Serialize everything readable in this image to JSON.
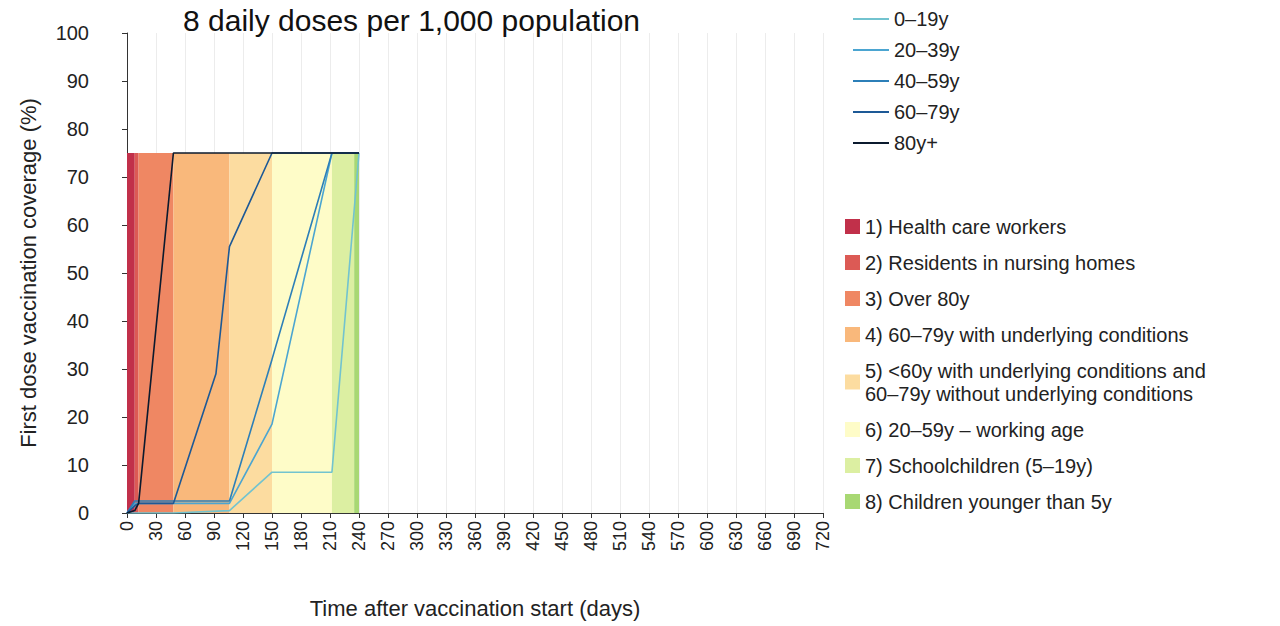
{
  "chart_data": {
    "type": "line",
    "title": "8 daily doses per 1,000 population",
    "x_label": "Time after vaccination start (days)",
    "y_label": "First dose vaccination coverage (%)",
    "xlim": [
      0,
      720
    ],
    "xticks": [
      0,
      30,
      60,
      90,
      120,
      150,
      180,
      210,
      240,
      270,
      300,
      330,
      360,
      390,
      420,
      450,
      480,
      510,
      540,
      570,
      600,
      630,
      660,
      690,
      720
    ],
    "ylim": [
      0,
      100
    ],
    "yticks": [
      0,
      10,
      20,
      30,
      40,
      50,
      60,
      70,
      80,
      90,
      100
    ],
    "grid": "x",
    "legend": "top-right",
    "series": [
      {
        "name": "0–19y",
        "color": "#72c3cf",
        "x": [
          0,
          12,
          48,
          106,
          150,
          212,
          240
        ],
        "values": [
          0,
          0,
          0,
          0.5,
          8.5,
          8.5,
          75
        ]
      },
      {
        "name": "20–39y",
        "color": "#4ba5d1",
        "x": [
          0,
          8,
          12,
          48,
          106,
          150,
          212,
          240
        ],
        "values": [
          0,
          2,
          2,
          2,
          2,
          18.5,
          75,
          75
        ]
      },
      {
        "name": "40–59y",
        "color": "#2c7fb8",
        "x": [
          0,
          8,
          12,
          48,
          106,
          150,
          212,
          240
        ],
        "values": [
          0,
          2.5,
          2.5,
          2.5,
          2.5,
          32,
          75,
          75
        ]
      },
      {
        "name": "60–79y",
        "color": "#1d5996",
        "x": [
          0,
          8,
          12,
          48,
          92,
          106,
          150,
          212,
          240
        ],
        "values": [
          0,
          1.5,
          2,
          2,
          29,
          55.5,
          75,
          75,
          75
        ]
      },
      {
        "name": "80y+",
        "color": "#0b1a2e",
        "x": [
          0,
          8,
          12,
          48,
          106,
          150,
          212,
          240
        ],
        "values": [
          0,
          0.5,
          2,
          75,
          75,
          75,
          75,
          75
        ]
      }
    ],
    "phase_top": 75,
    "phases": [
      {
        "label": "1) Health care workers",
        "start": 0,
        "end": 8,
        "color": "#c1304a"
      },
      {
        "label": "2) Residents in nursing homes",
        "start": 8,
        "end": 12,
        "color": "#dc5a55"
      },
      {
        "label": "3) Over 80y",
        "start": 12,
        "end": 48,
        "color": "#ef8763"
      },
      {
        "label": "4) 60–79y with underlying conditions",
        "start": 48,
        "end": 106,
        "color": "#f9b87b"
      },
      {
        "label": "5) <60y with underlying conditions and\n60–79y without underlying conditions",
        "start": 106,
        "end": 150,
        "color": "#fcdca0"
      },
      {
        "label": "6) 20–59y – working age",
        "start": 150,
        "end": 212,
        "color": "#fefcc8"
      },
      {
        "label": "7) Schoolchildren (5–19y)",
        "start": 212,
        "end": 235,
        "color": "#dcefa2"
      },
      {
        "label": "8) Children younger than 5y",
        "start": 235,
        "end": 240,
        "color": "#a8d873"
      }
    ]
  }
}
